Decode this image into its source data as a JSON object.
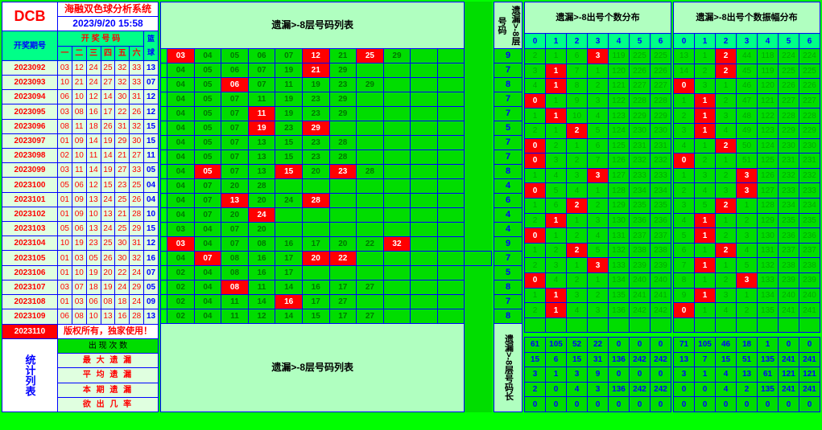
{
  "logo": "DCB",
  "title": "海融双色球分析系统",
  "timestamp": "2023/9/20 15:58",
  "left": {
    "header_kj": "开 奖 号 码",
    "header_lq": "篮球",
    "header_period": "开奖期号",
    "sub_cols": [
      "一",
      "二",
      "三",
      "四",
      "五",
      "六"
    ],
    "rows": [
      {
        "p": "2023092",
        "n": [
          "03",
          "12",
          "24",
          "25",
          "32",
          "33"
        ],
        "b": "13"
      },
      {
        "p": "2023093",
        "n": [
          "10",
          "21",
          "24",
          "27",
          "32",
          "33"
        ],
        "b": "07"
      },
      {
        "p": "2023094",
        "n": [
          "06",
          "10",
          "12",
          "14",
          "30",
          "31"
        ],
        "b": "12"
      },
      {
        "p": "2023095",
        "n": [
          "03",
          "08",
          "16",
          "17",
          "22",
          "26"
        ],
        "b": "12"
      },
      {
        "p": "2023096",
        "n": [
          "08",
          "11",
          "18",
          "26",
          "31",
          "32"
        ],
        "b": "15"
      },
      {
        "p": "2023097",
        "n": [
          "01",
          "09",
          "14",
          "19",
          "29",
          "30"
        ],
        "b": "15"
      },
      {
        "p": "2023098",
        "n": [
          "02",
          "10",
          "11",
          "14",
          "21",
          "27"
        ],
        "b": "11"
      },
      {
        "p": "2023099",
        "n": [
          "03",
          "11",
          "14",
          "19",
          "27",
          "33"
        ],
        "b": "05"
      },
      {
        "p": "2023100",
        "n": [
          "05",
          "06",
          "12",
          "15",
          "23",
          "25"
        ],
        "b": "04"
      },
      {
        "p": "2023101",
        "n": [
          "01",
          "09",
          "13",
          "24",
          "25",
          "26"
        ],
        "b": "04"
      },
      {
        "p": "2023102",
        "n": [
          "01",
          "09",
          "10",
          "13",
          "21",
          "28"
        ],
        "b": "10"
      },
      {
        "p": "2023103",
        "n": [
          "05",
          "06",
          "13",
          "24",
          "25",
          "29"
        ],
        "b": "15"
      },
      {
        "p": "2023104",
        "n": [
          "10",
          "19",
          "23",
          "25",
          "30",
          "31"
        ],
        "b": "12"
      },
      {
        "p": "2023105",
        "n": [
          "01",
          "03",
          "05",
          "26",
          "30",
          "32"
        ],
        "b": "16"
      },
      {
        "p": "2023106",
        "n": [
          "01",
          "10",
          "19",
          "20",
          "22",
          "24"
        ],
        "b": "07"
      },
      {
        "p": "2023107",
        "n": [
          "03",
          "07",
          "18",
          "19",
          "24",
          "29"
        ],
        "b": "05"
      },
      {
        "p": "2023108",
        "n": [
          "01",
          "03",
          "06",
          "08",
          "18",
          "24"
        ],
        "b": "09"
      },
      {
        "p": "2023109",
        "n": [
          "06",
          "08",
          "10",
          "13",
          "16",
          "28"
        ],
        "b": "13"
      }
    ],
    "current": {
      "p": "2023110",
      "text": "版权所有，独家使用！"
    },
    "stats_label": "统计列表",
    "stats_rows": [
      "出 现 次 数",
      "最 大 遗 漏",
      "平 均 遗 漏",
      "本 期 遗 漏",
      "欲 出 几 率"
    ]
  },
  "middle": {
    "header": "遗漏>-8层号码列表",
    "rows": [
      [
        " ",
        {
          "t": "03",
          "h": 1
        },
        "04",
        "05",
        "06",
        "07",
        {
          "t": "12",
          "h": 1
        },
        "21",
        {
          "t": "25",
          "h": 1
        },
        "29",
        " ",
        " "
      ],
      [
        " ",
        "04",
        "05",
        "06",
        "07",
        "19",
        {
          "t": "21",
          "h": 1
        },
        "29",
        " ",
        " ",
        " ",
        " "
      ],
      [
        " ",
        "04",
        "05",
        {
          "t": "06",
          "h": 1
        },
        "07",
        "11",
        "19",
        "23",
        "29",
        " ",
        " ",
        " "
      ],
      [
        " ",
        "04",
        "05",
        "07",
        "11",
        "19",
        "23",
        "29",
        " ",
        " ",
        " ",
        " "
      ],
      [
        " ",
        "04",
        "05",
        "07",
        {
          "t": "11",
          "h": 1
        },
        "19",
        "23",
        "29",
        " ",
        " ",
        " ",
        " "
      ],
      [
        " ",
        "04",
        "05",
        "07",
        {
          "t": "19",
          "h": 1
        },
        "23",
        {
          "t": "29",
          "h": 1
        },
        " ",
        " ",
        " ",
        " ",
        " "
      ],
      [
        " ",
        "04",
        "05",
        "07",
        "13",
        "15",
        "23",
        "28",
        " ",
        " ",
        " ",
        " "
      ],
      [
        " ",
        "04",
        "05",
        "07",
        "13",
        "15",
        "23",
        "28",
        " ",
        " ",
        " ",
        " "
      ],
      [
        " ",
        "04",
        {
          "t": "05",
          "h": 1
        },
        "07",
        "13",
        {
          "t": "15",
          "h": 1
        },
        "20",
        {
          "t": "23",
          "h": 1
        },
        "28",
        " ",
        " ",
        " "
      ],
      [
        " ",
        "04",
        "07",
        "20",
        "28",
        " ",
        " ",
        " ",
        " ",
        " ",
        " ",
        " "
      ],
      [
        " ",
        "04",
        "07",
        {
          "t": "13",
          "h": 1
        },
        "20",
        "24",
        {
          "t": "28",
          "h": 1
        },
        " ",
        " ",
        " ",
        " ",
        " "
      ],
      [
        " ",
        "04",
        "07",
        "20",
        {
          "t": "24",
          "h": 1
        },
        " ",
        " ",
        " ",
        " ",
        " ",
        " ",
        " "
      ],
      [
        " ",
        "03",
        "04",
        "07",
        "20",
        " ",
        " ",
        " ",
        " ",
        " ",
        " ",
        " "
      ],
      [
        " ",
        {
          "t": "03",
          "h": 1
        },
        "04",
        "07",
        "08",
        "16",
        "17",
        "20",
        "22",
        {
          "t": "32",
          "h": 1
        },
        " ",
        " "
      ],
      [
        " ",
        "04",
        {
          "t": "07",
          "h": 1
        },
        "08",
        "16",
        "17",
        {
          "t": "20",
          "h": 1
        },
        {
          "t": "22",
          "h": 1
        },
        " ",
        " ",
        " ",
        " ",
        " "
      ],
      [
        " ",
        "02",
        "04",
        "08",
        "16",
        "17",
        " ",
        " ",
        " ",
        " ",
        " ",
        " "
      ],
      [
        " ",
        "02",
        "04",
        {
          "t": "08",
          "h": 1
        },
        "11",
        "14",
        "16",
        "17",
        "27",
        " ",
        " ",
        " "
      ],
      [
        " ",
        "02",
        "04",
        "11",
        "14",
        {
          "t": "16",
          "h": 1
        },
        "17",
        "27",
        " ",
        " ",
        " ",
        " "
      ],
      [
        " ",
        "02",
        "04",
        "11",
        "12",
        "14",
        "15",
        "17",
        "27",
        " ",
        " ",
        " "
      ]
    ],
    "bottom_header": "遗漏>-8层号码列表"
  },
  "vcol": {
    "top_label": "遗漏>-8层号码",
    "nums": [
      "9",
      "7",
      "8",
      "7",
      "7",
      "5",
      "7",
      "7",
      "8",
      "4",
      "6",
      "4",
      "4",
      "9",
      "7",
      "5",
      "8",
      "7",
      "8"
    ],
    "bot_label": "遗漏>-8层号码长"
  },
  "dist_a": {
    "header": "遗漏>-8出号个数分布",
    "cols": [
      "0",
      "1",
      "2",
      "3",
      "4",
      "5",
      "6"
    ],
    "rows": [
      [
        "2",
        "1",
        "6",
        {
          "t": "3",
          "h": 1
        },
        "119",
        "225",
        "225"
      ],
      [
        "3",
        {
          "t": "1",
          "h": 1
        },
        "7",
        "1",
        "120",
        "226",
        "226"
      ],
      [
        "4",
        {
          "t": "1",
          "h": 1
        },
        "8",
        "2",
        "121",
        "227",
        "227"
      ],
      [
        {
          "t": "0",
          "h": 1
        },
        "1",
        "9",
        "3",
        "122",
        "228",
        "228"
      ],
      [
        "1",
        {
          "t": "1",
          "h": 1
        },
        "10",
        "4",
        "123",
        "229",
        "229"
      ],
      [
        "2",
        "1",
        {
          "t": "2",
          "h": 1
        },
        "5",
        "124",
        "230",
        "230"
      ],
      [
        {
          "t": "0",
          "h": 1
        },
        "2",
        "1",
        "6",
        "125",
        "231",
        "231"
      ],
      [
        {
          "t": "0",
          "h": 1
        },
        "3",
        "2",
        "7",
        "126",
        "232",
        "232"
      ],
      [
        "1",
        "4",
        "3",
        {
          "t": "3",
          "h": 1
        },
        "127",
        "233",
        "233"
      ],
      [
        {
          "t": "0",
          "h": 1
        },
        "5",
        "4",
        "1",
        "128",
        "234",
        "234"
      ],
      [
        "1",
        "6",
        {
          "t": "2",
          "h": 1
        },
        "2",
        "129",
        "235",
        "235"
      ],
      [
        "2",
        {
          "t": "1",
          "h": 1
        },
        "1",
        "3",
        "130",
        "236",
        "236"
      ],
      [
        {
          "t": "0",
          "h": 1
        },
        "1",
        "2",
        "4",
        "131",
        "237",
        "237"
      ],
      [
        "1",
        "2",
        {
          "t": "2",
          "h": 1
        },
        "5",
        "132",
        "238",
        "238"
      ],
      [
        "2",
        "3",
        "1",
        {
          "t": "3",
          "h": 1
        },
        "133",
        "239",
        "239"
      ],
      [
        {
          "t": "0",
          "h": 1
        },
        "4",
        "2",
        "1",
        "134",
        "240",
        "240"
      ],
      [
        "1",
        {
          "t": "1",
          "h": 1
        },
        "3",
        "2",
        "135",
        "241",
        "241"
      ],
      [
        "2",
        {
          "t": "1",
          "h": 1
        },
        "4",
        "3",
        "136",
        "242",
        "242"
      ],
      [
        "",
        "",
        "",
        "",
        "",
        "",
        ""
      ]
    ],
    "stats": [
      [
        "61",
        "105",
        "52",
        "22",
        "0",
        "0",
        "0"
      ],
      [
        "15",
        "6",
        "15",
        "31",
        "136",
        "242",
        "242"
      ],
      [
        "3",
        "1",
        "3",
        "9",
        "0",
        "0",
        "0"
      ],
      [
        "2",
        "0",
        "4",
        "3",
        "136",
        "242",
        "242"
      ],
      [
        "0",
        "0",
        "0",
        "0",
        "0",
        "0",
        "0"
      ]
    ]
  },
  "dist_b": {
    "header": "遗漏>-8出号个数振幅分布",
    "cols": [
      "0",
      "1",
      "2",
      "3",
      "4",
      "5",
      "6"
    ],
    "rows": [
      [
        "13",
        "1",
        {
          "t": "2",
          "h": 1
        },
        "44",
        "118",
        "224",
        "224"
      ],
      [
        "14",
        "2",
        {
          "t": "2",
          "h": 1
        },
        "45",
        "119",
        "225",
        "225"
      ],
      [
        {
          "t": "0",
          "h": 1
        },
        "3",
        "1",
        "46",
        "120",
        "226",
        "226"
      ],
      [
        "1",
        {
          "t": "1",
          "h": 1
        },
        "2",
        "47",
        "121",
        "227",
        "227"
      ],
      [
        "2",
        {
          "t": "1",
          "h": 1
        },
        "3",
        "48",
        "122",
        "228",
        "228"
      ],
      [
        "3",
        {
          "t": "1",
          "h": 1
        },
        "4",
        "49",
        "123",
        "229",
        "229"
      ],
      [
        "4",
        "1",
        {
          "t": "2",
          "h": 1
        },
        "50",
        "124",
        "230",
        "230"
      ],
      [
        {
          "t": "0",
          "h": 1
        },
        "2",
        "1",
        "51",
        "125",
        "231",
        "231"
      ],
      [
        "1",
        "3",
        "2",
        {
          "t": "3",
          "h": 1
        },
        "126",
        "232",
        "232"
      ],
      [
        "2",
        "4",
        "3",
        {
          "t": "3",
          "h": 1
        },
        "127",
        "233",
        "233"
      ],
      [
        "3",
        "5",
        {
          "t": "2",
          "h": 1
        },
        "1",
        "128",
        "234",
        "234"
      ],
      [
        "4",
        {
          "t": "1",
          "h": 1
        },
        "1",
        "2",
        "129",
        "235",
        "235"
      ],
      [
        "5",
        {
          "t": "1",
          "h": 1
        },
        "2",
        "3",
        "130",
        "236",
        "236"
      ],
      [
        "6",
        "1",
        {
          "t": "2",
          "h": 1
        },
        "4",
        "131",
        "237",
        "237"
      ],
      [
        "7",
        {
          "t": "1",
          "h": 1
        },
        "1",
        "5",
        "132",
        "238",
        "238"
      ],
      [
        "8",
        "1",
        "2",
        {
          "t": "3",
          "h": 1
        },
        "133",
        "239",
        "239"
      ],
      [
        "9",
        {
          "t": "1",
          "h": 1
        },
        "3",
        "1",
        "134",
        "240",
        "240"
      ],
      [
        {
          "t": "0",
          "h": 1
        },
        "1",
        "4",
        "2",
        "135",
        "241",
        "241"
      ],
      [
        "",
        "",
        "",
        "",
        "",
        "",
        ""
      ]
    ],
    "stats": [
      [
        "71",
        "105",
        "46",
        "18",
        "1",
        "0",
        "0"
      ],
      [
        "13",
        "7",
        "15",
        "51",
        "135",
        "241",
        "241"
      ],
      [
        "3",
        "1",
        "4",
        "13",
        "61",
        "121",
        "121"
      ],
      [
        "0",
        "0",
        "4",
        "2",
        "135",
        "241",
        "241"
      ],
      [
        "0",
        "0",
        "0",
        "0",
        "0",
        "0",
        "0"
      ]
    ]
  }
}
